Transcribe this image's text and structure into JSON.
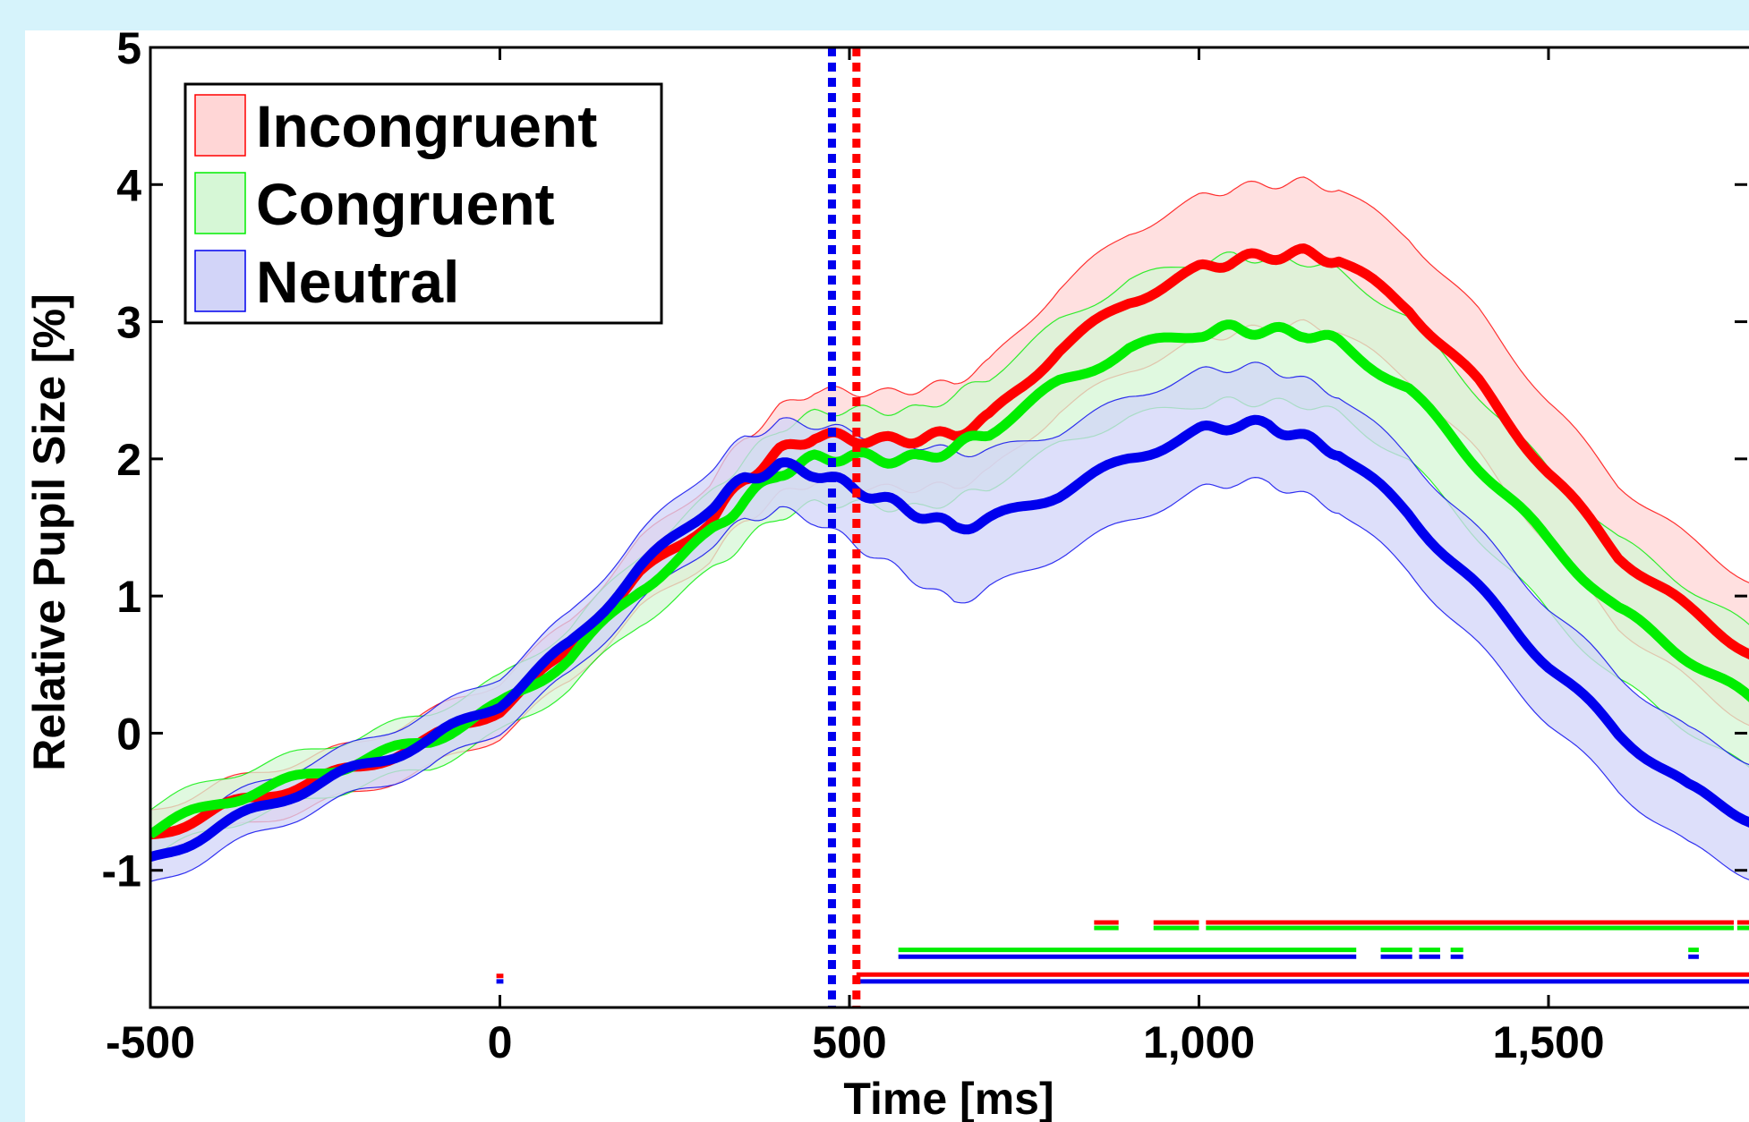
{
  "chart_data": {
    "type": "line",
    "xlabel": "Time [ms]",
    "ylabel": "Relative Pupil Size [%]",
    "xlim": [
      -500,
      1800
    ],
    "ylim": [
      -2,
      5
    ],
    "x_ticks": [
      -500,
      0,
      500,
      1000,
      1500
    ],
    "x_tick_labels": [
      "-500",
      "0",
      "500",
      "1,000",
      "1,500"
    ],
    "y_ticks": [
      -1,
      0,
      1,
      2,
      3,
      4,
      5
    ],
    "y_tick_labels": [
      "-1",
      "0",
      "1",
      "2",
      "3",
      "4",
      "5"
    ],
    "grid": false,
    "legend": {
      "position": "top-left",
      "entries": [
        "Incongruent",
        "Congruent",
        "Neutral"
      ]
    },
    "series": [
      {
        "name": "Incongruent",
        "color": "#ff0000",
        "band_color": "#ffd6d6",
        "x": [
          -500,
          -400,
          -300,
          -200,
          -100,
          0,
          100,
          200,
          300,
          350,
          400,
          450,
          500,
          550,
          600,
          650,
          700,
          800,
          900,
          1000,
          1050,
          1100,
          1150,
          1200,
          1300,
          1400,
          1500,
          1600,
          1700,
          1800
        ],
        "y": [
          -0.75,
          -0.55,
          -0.4,
          -0.25,
          -0.05,
          0.18,
          0.6,
          1.15,
          1.55,
          1.85,
          2.05,
          2.17,
          2.15,
          2.13,
          2.15,
          2.18,
          2.3,
          2.8,
          3.15,
          3.38,
          3.45,
          3.48,
          3.5,
          3.45,
          3.1,
          2.55,
          1.9,
          1.3,
          0.9,
          0.55
        ],
        "err": [
          0.18,
          0.18,
          0.18,
          0.18,
          0.2,
          0.2,
          0.22,
          0.25,
          0.28,
          0.3,
          0.32,
          0.33,
          0.34,
          0.35,
          0.36,
          0.38,
          0.4,
          0.45,
          0.5,
          0.52,
          0.53,
          0.52,
          0.52,
          0.52,
          0.52,
          0.52,
          0.52,
          0.52,
          0.52,
          0.52
        ]
      },
      {
        "name": "Congruent",
        "color": "#00ee00",
        "band_color": "#d6f7d6",
        "x": [
          -500,
          -400,
          -300,
          -200,
          -100,
          0,
          100,
          200,
          300,
          350,
          400,
          450,
          500,
          550,
          600,
          650,
          700,
          800,
          900,
          1000,
          1050,
          1100,
          1150,
          1200,
          1300,
          1400,
          1500,
          1600,
          1700,
          1800
        ],
        "y": [
          -0.72,
          -0.5,
          -0.35,
          -0.2,
          -0.05,
          0.2,
          0.55,
          1.05,
          1.45,
          1.7,
          1.9,
          2.0,
          2.02,
          2.0,
          2.0,
          2.08,
          2.2,
          2.55,
          2.8,
          2.92,
          2.95,
          2.93,
          2.92,
          2.85,
          2.5,
          1.95,
          1.4,
          0.9,
          0.55,
          0.2
        ],
        "err": [
          0.18,
          0.18,
          0.18,
          0.18,
          0.2,
          0.2,
          0.22,
          0.25,
          0.28,
          0.3,
          0.32,
          0.33,
          0.34,
          0.35,
          0.36,
          0.38,
          0.4,
          0.45,
          0.5,
          0.52,
          0.53,
          0.52,
          0.52,
          0.52,
          0.52,
          0.52,
          0.52,
          0.52,
          0.52,
          0.52
        ]
      },
      {
        "name": "Neutral",
        "color": "#0000ee",
        "band_color": "#d2d4f8",
        "x": [
          -500,
          -400,
          -300,
          -200,
          -100,
          0,
          100,
          200,
          300,
          350,
          400,
          450,
          500,
          550,
          600,
          650,
          700,
          800,
          900,
          1000,
          1050,
          1100,
          1150,
          1200,
          1300,
          1400,
          1500,
          1600,
          1700,
          1800
        ],
        "y": [
          -0.93,
          -0.68,
          -0.45,
          -0.25,
          -0.05,
          0.22,
          0.65,
          1.2,
          1.65,
          1.85,
          1.95,
          1.9,
          1.8,
          1.7,
          1.6,
          1.5,
          1.55,
          1.75,
          2.0,
          2.2,
          2.25,
          2.25,
          2.15,
          2.05,
          1.6,
          1.05,
          0.5,
          0.0,
          -0.4,
          -0.65
        ],
        "err": [
          0.18,
          0.18,
          0.18,
          0.18,
          0.2,
          0.2,
          0.22,
          0.25,
          0.28,
          0.3,
          0.32,
          0.35,
          0.4,
          0.45,
          0.5,
          0.55,
          0.5,
          0.45,
          0.45,
          0.43,
          0.42,
          0.42,
          0.42,
          0.42,
          0.42,
          0.42,
          0.42,
          0.42,
          0.42,
          0.42
        ]
      }
    ],
    "onset_markers": [
      {
        "name": "Neutral",
        "x": 475,
        "color": "#0000ee"
      },
      {
        "name": "Incongruent",
        "x": 510,
        "color": "#ff0000"
      }
    ],
    "significance_bars": [
      {
        "color": "#ff0000",
        "y": -1.38,
        "segments": [
          [
            850,
            885
          ],
          [
            935,
            1000
          ],
          [
            1010,
            1765
          ],
          [
            1770,
            1790
          ]
        ]
      },
      {
        "color": "#00ee00",
        "y": -1.42,
        "segments": [
          [
            850,
            885
          ],
          [
            935,
            1000
          ],
          [
            1010,
            1765
          ],
          [
            1770,
            1790
          ]
        ]
      },
      {
        "color": "#00ee00",
        "y": -1.58,
        "segments": [
          [
            570,
            1225
          ],
          [
            1260,
            1305
          ],
          [
            1315,
            1345
          ],
          [
            1360,
            1378
          ],
          [
            1700,
            1715
          ]
        ]
      },
      {
        "color": "#0000ee",
        "y": -1.63,
        "segments": [
          [
            570,
            1225
          ],
          [
            1260,
            1305
          ],
          [
            1315,
            1345
          ],
          [
            1360,
            1378
          ],
          [
            1700,
            1715
          ]
        ]
      },
      {
        "color": "#ff0000",
        "y": -1.76,
        "segments": [
          [
            510,
            1800
          ]
        ]
      },
      {
        "color": "#0000ee",
        "y": -1.81,
        "segments": [
          [
            510,
            1800
          ]
        ]
      },
      {
        "color": "#ff0000",
        "y": -1.77,
        "segments": [
          [
            -5,
            5
          ]
        ]
      },
      {
        "color": "#0000ee",
        "y": -1.81,
        "segments": [
          [
            -5,
            5
          ]
        ]
      }
    ]
  }
}
